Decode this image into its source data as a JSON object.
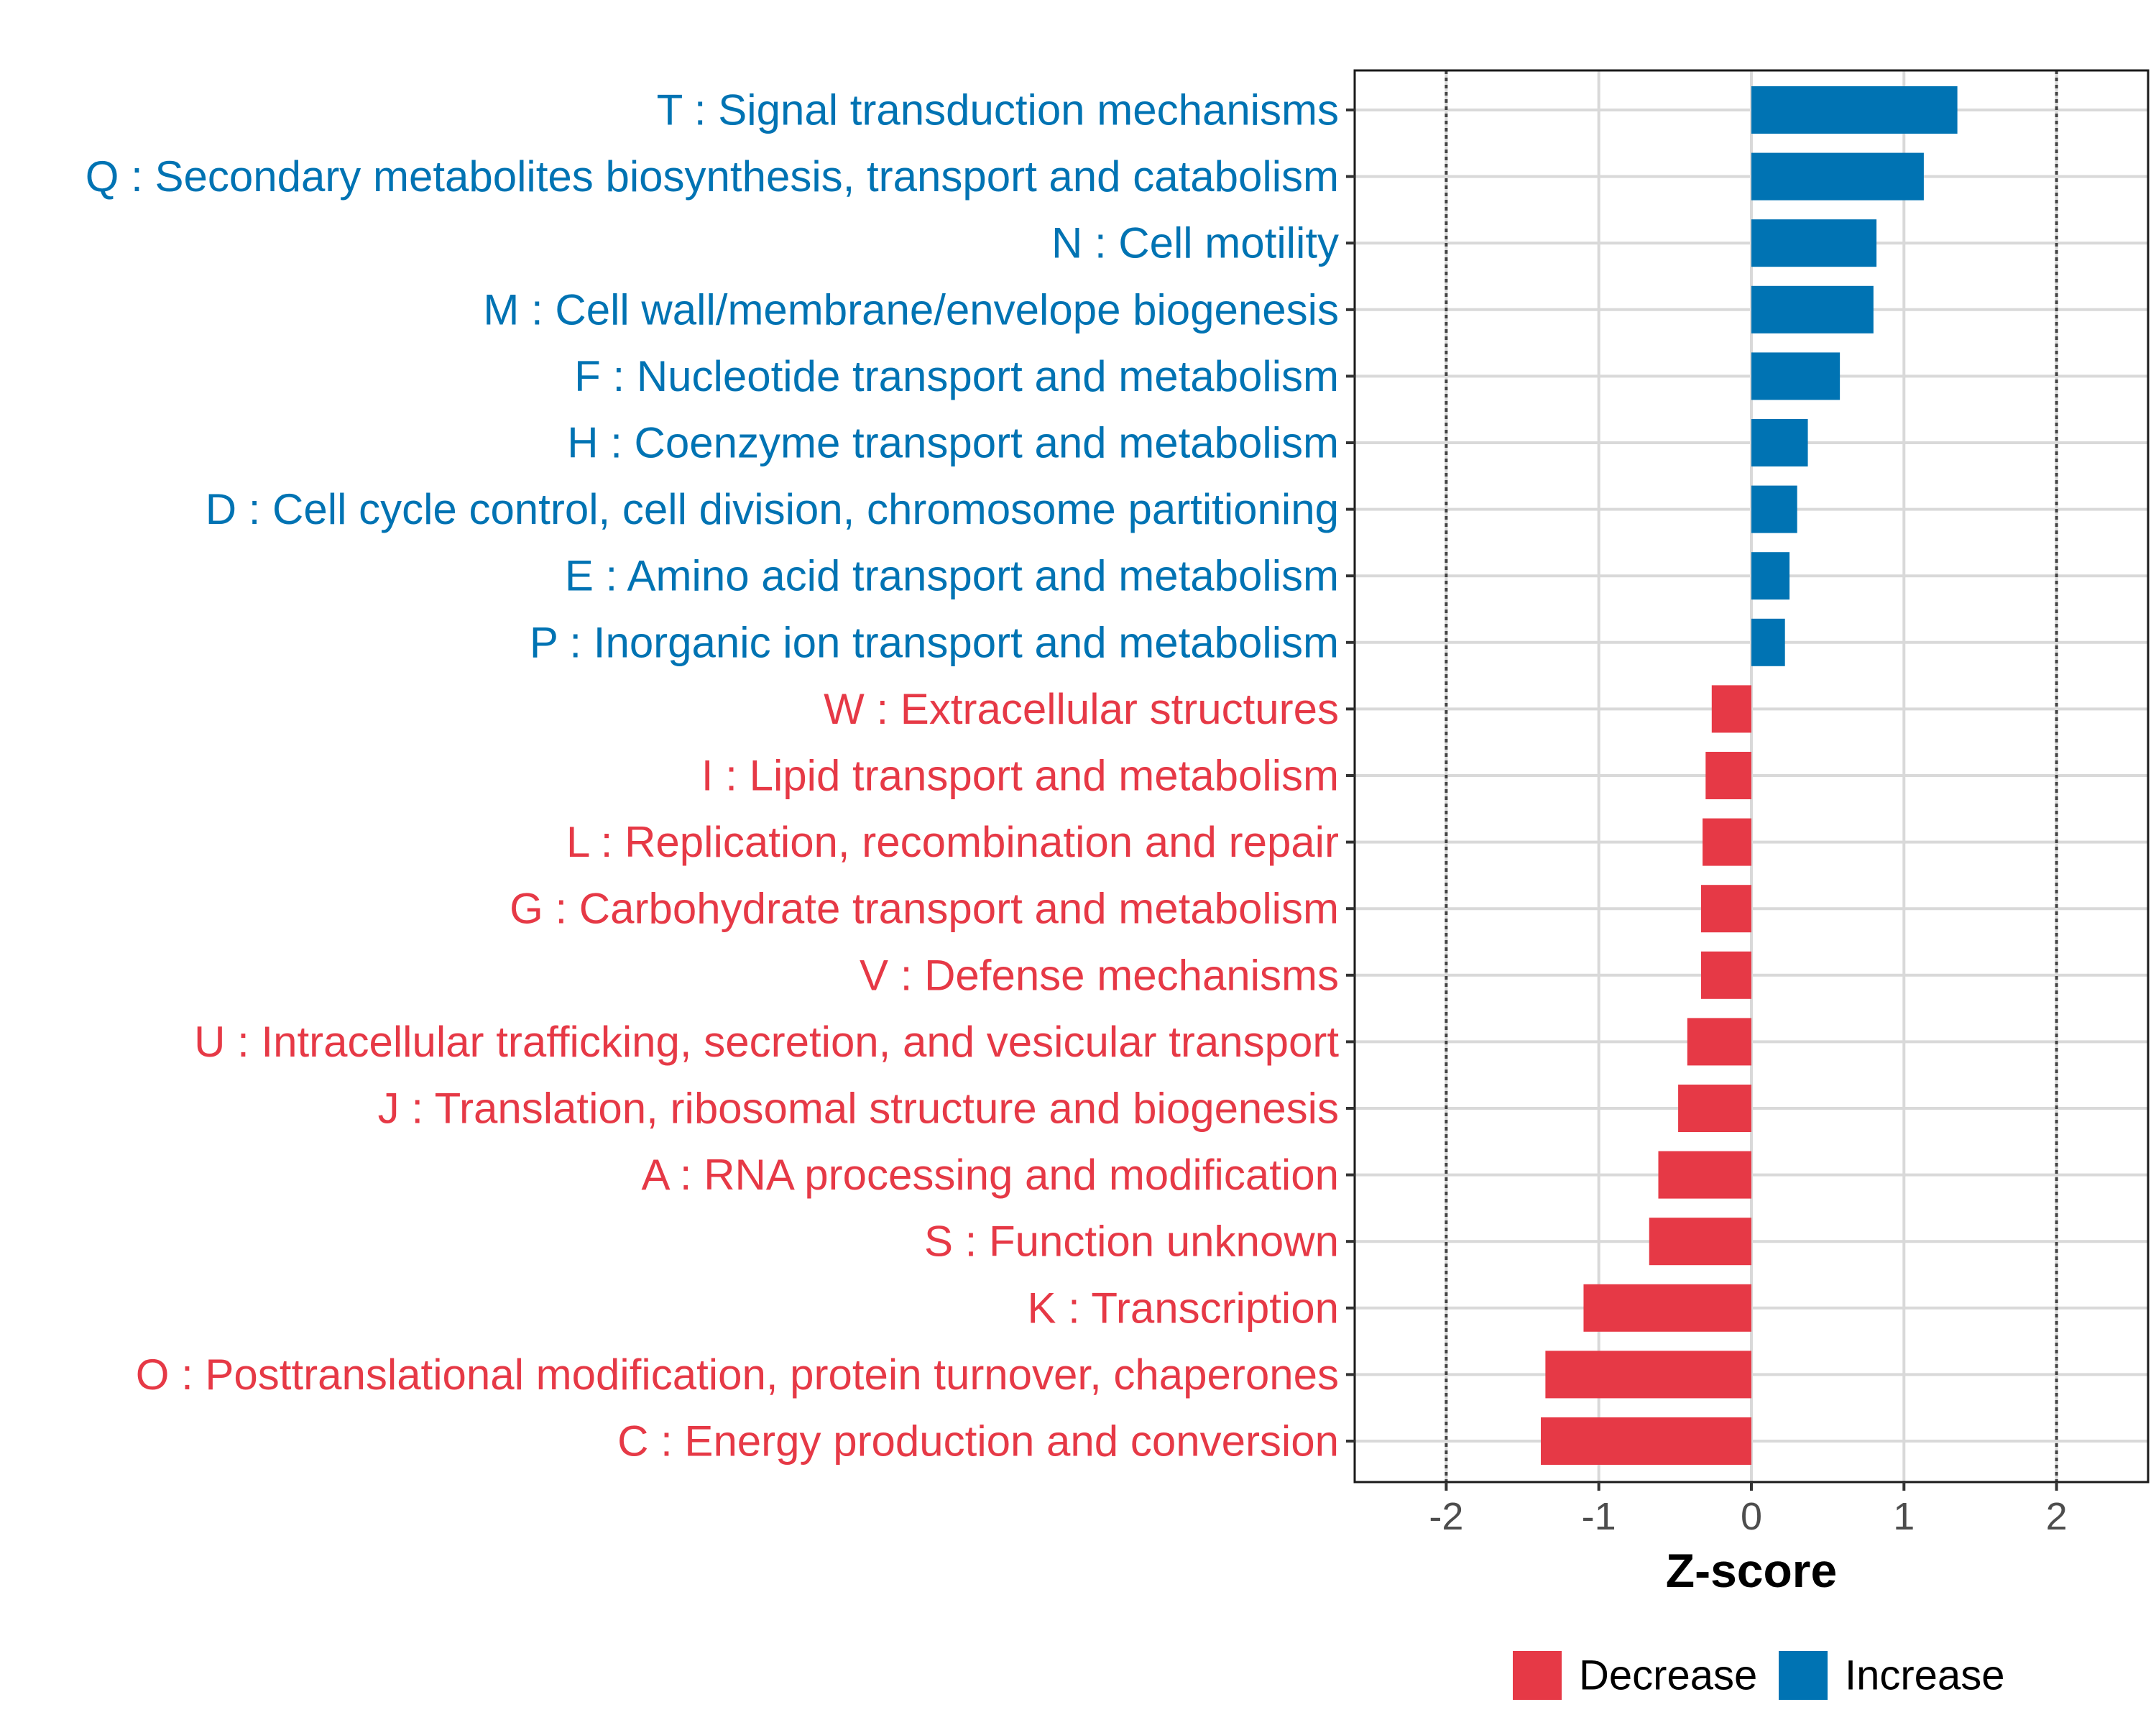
{
  "chart_data": {
    "type": "bar",
    "orientation": "horizontal",
    "xlabel": "Z-score",
    "xlim": [
      -2.6,
      2.6
    ],
    "xticks": [
      -2,
      -1,
      0,
      1,
      2
    ],
    "xtick_labels": [
      "-2",
      "-1",
      "0",
      "1",
      "2"
    ],
    "reference_lines": [
      -2,
      2
    ],
    "grid": true,
    "categories": [
      "T : Signal transduction mechanisms",
      "Q : Secondary metabolites biosynthesis, transport and catabolism",
      "N : Cell motility",
      "M : Cell wall/membrane/envelope biogenesis",
      "F : Nucleotide transport and metabolism",
      "H : Coenzyme transport and metabolism",
      "D : Cell cycle control, cell division, chromosome partitioning",
      "E : Amino acid transport and metabolism",
      "P : Inorganic ion transport and metabolism",
      "W : Extracellular structures",
      "I : Lipid transport and metabolism",
      "L : Replication, recombination and repair",
      "G : Carbohydrate transport and metabolism",
      "V : Defense mechanisms",
      "U : Intracellular trafficking, secretion, and vesicular transport",
      "J : Translation, ribosomal structure and biogenesis",
      "A : RNA processing and modification",
      "S : Function unknown",
      "K : Transcription",
      "O : Posttranslational modification, protein turnover, chaperones",
      "C : Energy production and conversion"
    ],
    "values": [
      1.35,
      1.13,
      0.82,
      0.8,
      0.58,
      0.37,
      0.3,
      0.25,
      0.22,
      -0.26,
      -0.3,
      -0.32,
      -0.33,
      -0.33,
      -0.42,
      -0.48,
      -0.61,
      -0.67,
      -1.1,
      -1.35,
      -1.38
    ],
    "legend": {
      "position": "bottom",
      "entries": [
        {
          "name": "Decrease",
          "color": "#E63946"
        },
        {
          "name": "Increase",
          "color": "#0073B3"
        }
      ]
    },
    "colors": {
      "increase": "#0073B3",
      "decrease": "#E63946"
    }
  }
}
